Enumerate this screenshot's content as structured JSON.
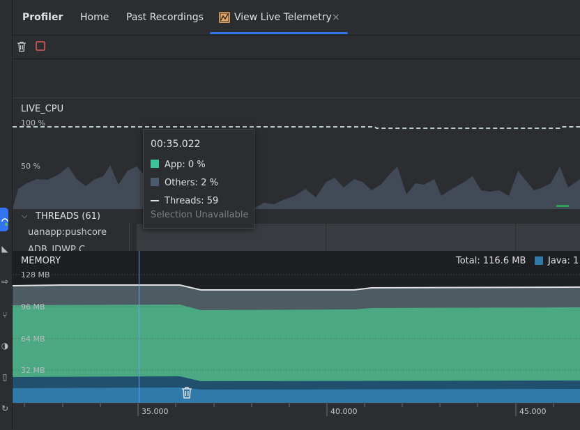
{
  "tabs": {
    "profiler": "Profiler",
    "home": "Home",
    "past_recordings": "Past Recordings",
    "live_telemetry": "View Live Telemetry",
    "close_glyph": "×"
  },
  "cpu": {
    "title": "LIVE_CPU",
    "label_100": "100 %",
    "label_50": "50 %"
  },
  "tooltip": {
    "time": "00:35.022",
    "app": "App: 0 %",
    "others": "Others: 2 %",
    "threads": "Threads: 59",
    "selection": "Selection Unavailable"
  },
  "threads": {
    "header": "THREADS (61)",
    "row1": "uanapp:pushcore",
    "row2": "ADB_JDWP C"
  },
  "memory": {
    "title": "MEMORY",
    "total": "Total: 116.6 MB",
    "java_legend": "Java: 1",
    "label_128": "128 MB",
    "label_96": "96 MB",
    "label_64": "64 MB",
    "label_32": "32 MB"
  },
  "ruler": {
    "t35": "35.000",
    "t40": "40.000",
    "t45": "45.000"
  },
  "colors": {
    "accent": "#3574f0",
    "app": "#3dc39a",
    "others": "#4c5a6e",
    "java": "#2f7aa8",
    "memory_green": "#4aa983",
    "memory_gray": "#4d5b62"
  }
}
